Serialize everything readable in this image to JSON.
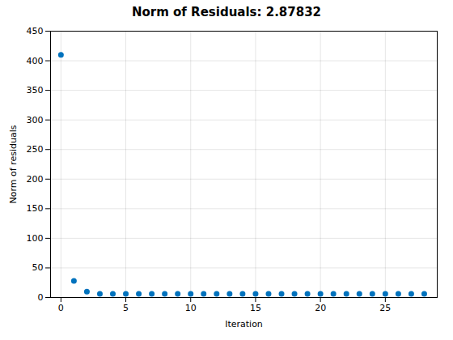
{
  "chart_data": {
    "type": "scatter",
    "title": "Norm of Residuals: 2.87832",
    "xlabel": "Iteration",
    "ylabel": "Norm of residuals",
    "x": [
      0,
      1,
      2,
      3,
      4,
      5,
      6,
      7,
      8,
      9,
      10,
      11,
      12,
      13,
      14,
      15,
      16,
      17,
      18,
      19,
      20,
      21,
      22,
      23,
      24,
      25,
      26,
      27,
      28
    ],
    "y": [
      410,
      28,
      10,
      6,
      6,
      6,
      6,
      6,
      6,
      6,
      6,
      6,
      6,
      6,
      6,
      6,
      6,
      6,
      6,
      6,
      6,
      6,
      6,
      6,
      6,
      6,
      6,
      6,
      6
    ],
    "color": "#0072BD",
    "xlim": [
      -0.8,
      29.0
    ],
    "xticks": [
      0,
      5,
      10,
      15,
      20,
      25
    ],
    "ylim": [
      0,
      450
    ],
    "yticks": [
      0,
      50,
      100,
      150,
      200,
      250,
      300,
      350,
      400,
      450
    ],
    "grid": true
  }
}
